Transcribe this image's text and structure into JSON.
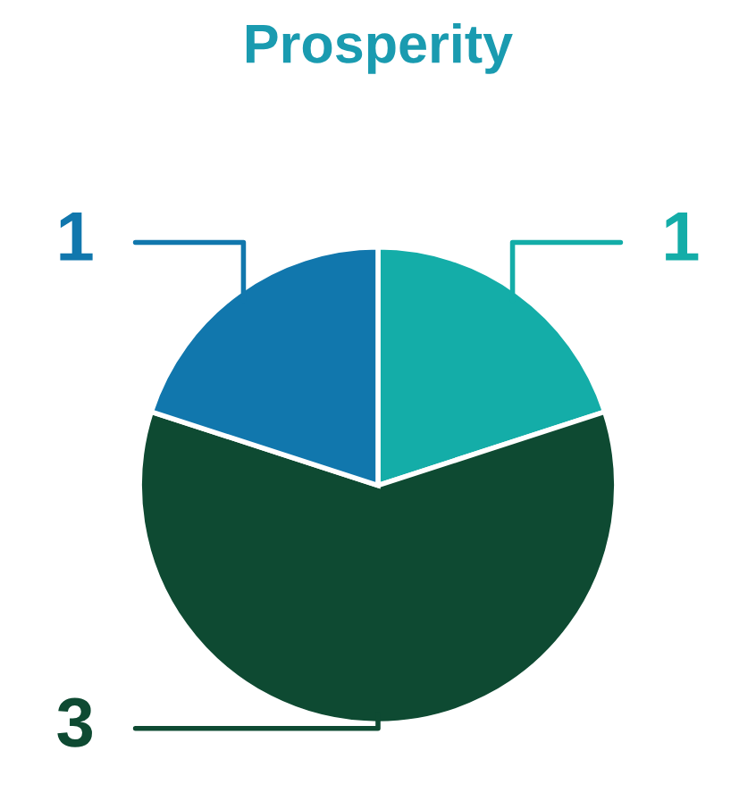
{
  "chart_data": {
    "type": "pie",
    "title": "Prosperity",
    "categories": [
      null,
      null,
      null
    ],
    "values": [
      1,
      3,
      1
    ],
    "colors": [
      "#14ada8",
      "#0e4a32",
      "#1177ad"
    ],
    "data_labels": true
  }
}
